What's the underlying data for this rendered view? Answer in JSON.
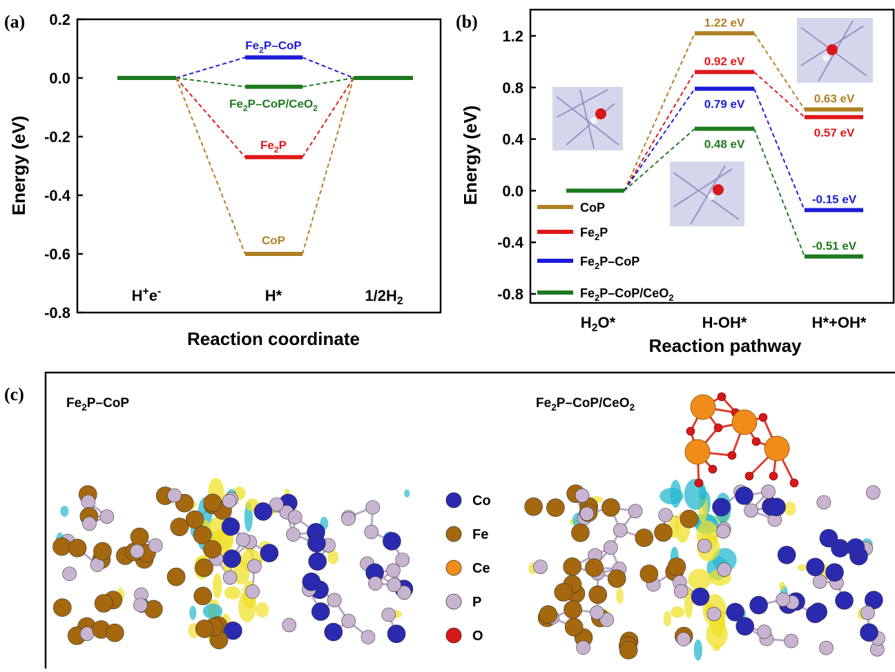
{
  "figure": {
    "a": {
      "tag": "(a)",
      "chart_data": {
        "type": "line",
        "xlabel": "Reaction coordinate",
        "ylabel": "Energy (eV)",
        "ylim": [
          -0.8,
          0.2
        ],
        "yticks": [
          "0.2",
          "0.0",
          "-0.2",
          "-0.4",
          "-0.6",
          "-0.8"
        ],
        "categories": [
          "H+e-",
          "H*",
          "1/2H2"
        ],
        "series": [
          {
            "name": "Fe2P–CoP",
            "color": "#1c1cd8",
            "values": [
              0.0,
              0.07,
              0.0
            ]
          },
          {
            "name": "Fe2P–CoP/CeO2",
            "color": "#1e7a1e",
            "values": [
              0.0,
              -0.03,
              0.0
            ]
          },
          {
            "name": "Fe2P",
            "color": "#e01818",
            "values": [
              0.0,
              -0.27,
              0.0
            ]
          },
          {
            "name": "CoP",
            "color": "#b07f24",
            "values": [
              0.0,
              -0.6,
              0.0
            ]
          }
        ]
      }
    },
    "b": {
      "tag": "(b)",
      "chart_data": {
        "type": "line",
        "xlabel": "Reaction pathway",
        "ylabel": "Energy (eV)",
        "ylim": [
          -0.8,
          1.4
        ],
        "yticks": [
          "1.2",
          "0.8",
          "0.4",
          "0.0",
          "-0.4",
          "-0.8"
        ],
        "categories": [
          "H2O*",
          "H-OH*",
          "H*+OH*"
        ],
        "legend_position": "bottom-left",
        "series": [
          {
            "name": "CoP",
            "color": "#b07f24",
            "values": [
              0.0,
              1.22,
              0.63
            ],
            "labels": [
              "",
              "1.22 eV",
              "0.63 eV"
            ]
          },
          {
            "name": "Fe2P",
            "color": "#e01818",
            "values": [
              0.0,
              0.92,
              0.57
            ],
            "labels": [
              "",
              "0.92 eV",
              "0.57 eV"
            ]
          },
          {
            "name": "Fe2P–CoP",
            "color": "#1c1cd8",
            "values": [
              0.0,
              0.79,
              -0.15
            ],
            "labels": [
              "",
              "0.79 eV",
              "-0.15 eV"
            ]
          },
          {
            "name": "Fe2P–CoP/CeO2",
            "color": "#1e7a1e",
            "values": [
              0.0,
              0.48,
              -0.51
            ],
            "labels": [
              "",
              "0.48 eV",
              "-0.51 eV"
            ]
          }
        ]
      }
    },
    "c": {
      "tag": "(c)",
      "left_title": "Fe2P–CoP",
      "right_title": "Fe2P–CoP/CeO2",
      "legend": [
        {
          "label": "Co",
          "color": "#2a2ab0"
        },
        {
          "label": "Fe",
          "color": "#a5680f"
        },
        {
          "label": "Ce",
          "color": "#f08c1a"
        },
        {
          "label": "P",
          "color": "#c8b4d0"
        },
        {
          "label": "O",
          "color": "#d81818"
        }
      ]
    }
  }
}
